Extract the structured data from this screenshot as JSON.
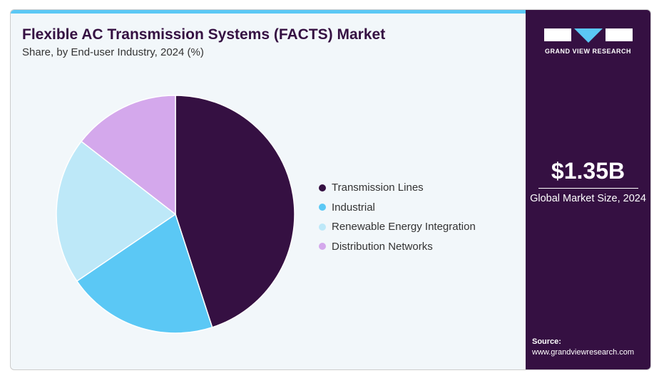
{
  "title": "Flexible AC Transmission Systems (FACTS) Market",
  "subtitle": "Share, by End-user Industry, 2024 (%)",
  "chart_data": {
    "type": "pie",
    "title": "Flexible AC Transmission Systems (FACTS) Market",
    "subtitle": "Share, by End-user Industry, 2024 (%)",
    "categories": [
      "Transmission Lines",
      "Industrial",
      "Renewable Energy Integration",
      "Distribution Networks"
    ],
    "values": [
      45,
      20.5,
      20,
      14.5
    ],
    "colors": [
      "#351042",
      "#5bc8f5",
      "#bde8f8",
      "#d4a8ec"
    ],
    "legend": "right"
  },
  "side": {
    "logo_text": "GRAND VIEW RESEARCH",
    "market_size": "$1.35B",
    "market_label": "Global Market Size, 2024",
    "source_label": "Source:",
    "source_url": "www.grandviewresearch.com"
  }
}
